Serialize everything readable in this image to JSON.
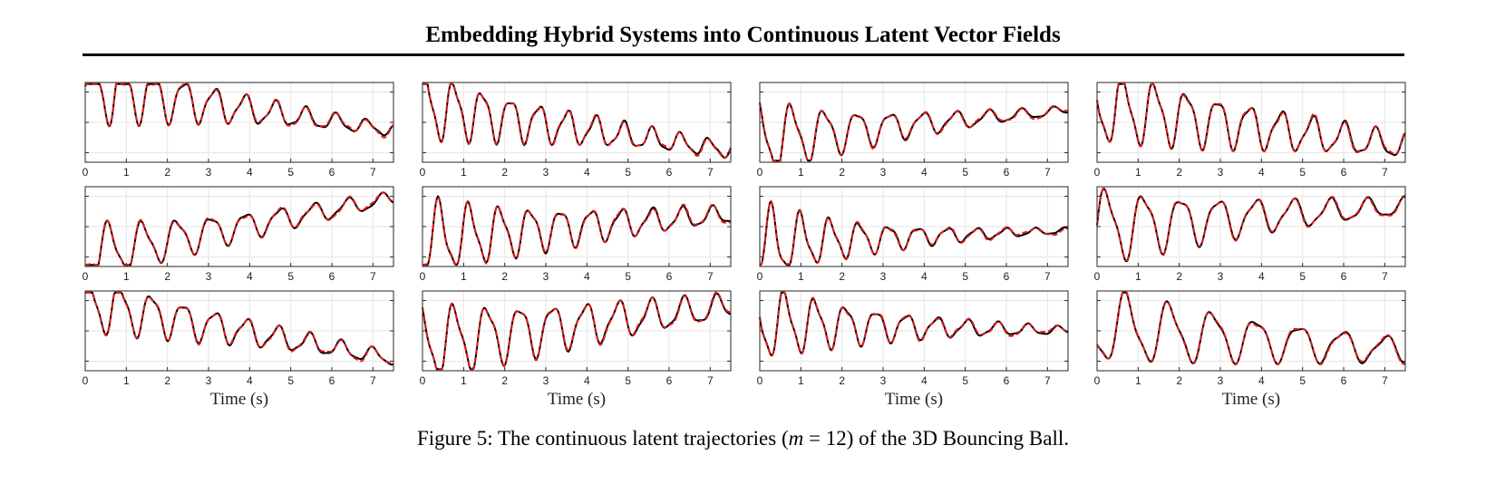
{
  "header": {
    "title": "Embedding Hybrid Systems into Continuous Latent Vector Fields"
  },
  "figure": {
    "caption_prefix": "Figure 5: The continuous latent trajectories (",
    "caption_math_var": "m",
    "caption_math_eq": " = 12",
    "caption_suffix": ") of the 3D Bouncing Ball.",
    "xlabel": "Time (s)",
    "colors": {
      "prediction": "#e41a1c",
      "ground_truth": "#000000",
      "grid": "#e6e6e6",
      "axes": "#262626"
    }
  },
  "chart_data": {
    "type": "line",
    "xlabel": "Time (s)",
    "xlim": [
      0,
      7.5
    ],
    "x_ticks": [
      "0",
      "1",
      "2",
      "3",
      "4",
      "5",
      "6",
      "7"
    ],
    "grid": true,
    "series_styles": [
      {
        "role": "ground truth",
        "color": "#000000",
        "style": "solid"
      },
      {
        "role": "prediction",
        "color": "#e41a1c",
        "style": "dashed"
      }
    ],
    "panels": [
      {
        "start": 0.95,
        "end": 0.4,
        "amp": 0.45,
        "freq": 1.35,
        "decay": 0.25,
        "trend": -0.1
      },
      {
        "start": 0.7,
        "end": 0.15,
        "amp": 0.4,
        "freq": 1.45,
        "decay": 0.2,
        "trend": -0.45
      },
      {
        "start": 0.3,
        "end": 0.65,
        "amp": 0.45,
        "freq": 1.25,
        "decay": 0.3,
        "trend": 0.35
      },
      {
        "start": 0.7,
        "end": 0.2,
        "amp": 0.45,
        "freq": 1.3,
        "decay": 0.15,
        "trend": -0.4
      },
      {
        "start": 0.15,
        "end": 0.85,
        "amp": 0.35,
        "freq": 1.2,
        "decay": 0.2,
        "trend": 0.7
      },
      {
        "start": 0.35,
        "end": 0.65,
        "amp": 0.45,
        "freq": 1.35,
        "decay": 0.2,
        "trend": 0.25
      },
      {
        "start": 0.3,
        "end": 0.45,
        "amp": 0.45,
        "freq": 1.4,
        "decay": 0.35,
        "trend": 0.1
      },
      {
        "start": 0.5,
        "end": 0.75,
        "amp": 0.45,
        "freq": 1.1,
        "decay": 0.2,
        "trend": 0.25
      },
      {
        "start": 0.85,
        "end": 0.15,
        "amp": 0.35,
        "freq": 1.3,
        "decay": 0.2,
        "trend": -0.7
      },
      {
        "start": 0.35,
        "end": 0.8,
        "amp": 0.45,
        "freq": 1.25,
        "decay": 0.15,
        "trend": 0.45
      },
      {
        "start": 0.6,
        "end": 0.5,
        "amp": 0.45,
        "freq": 1.35,
        "decay": 0.3,
        "trend": -0.05
      },
      {
        "start": 0.55,
        "end": 0.25,
        "amp": 0.45,
        "freq": 0.95,
        "decay": 0.15,
        "trend": -0.3
      }
    ]
  }
}
